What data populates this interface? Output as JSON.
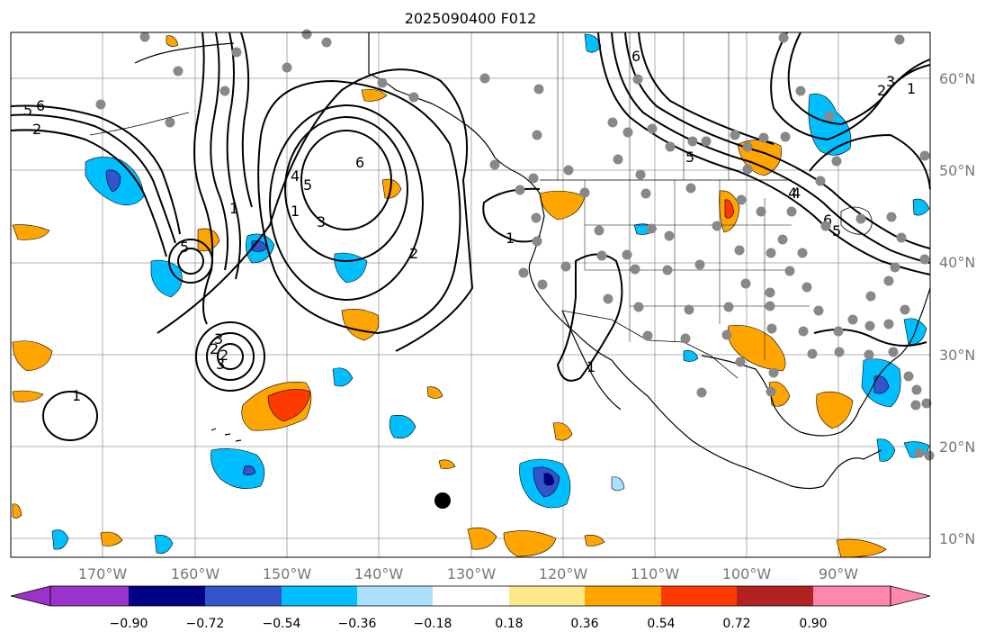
{
  "title": "2025090400 F012",
  "longitude_labels": [
    "170°W",
    "160°W",
    "150°W",
    "140°W",
    "130°W",
    "120°W",
    "110°W",
    "100°W",
    "90°W"
  ],
  "latitude_labels": [
    "60°N",
    "50°N",
    "40°N",
    "30°N",
    "20°N",
    "10°N"
  ],
  "colorbar": {
    "tick_labels": [
      "−0.90",
      "−0.72",
      "−0.54",
      "−0.36",
      "−0.18",
      "0.18",
      "0.36",
      "0.54",
      "0.72",
      "0.90"
    ],
    "colors": [
      "#9933cc",
      "#000088",
      "#3355cc",
      "#00bfff",
      "#aadfff",
      "#ffffff",
      "#ffe88a",
      "#ffa500",
      "#ff3a00",
      "#b22222",
      "#ff88aa"
    ]
  },
  "contour_labels": [
    "6",
    "5",
    "2",
    "1",
    "5",
    "3",
    "2",
    "6",
    "5",
    "4",
    "3",
    "2",
    "1",
    "1",
    "2",
    "3",
    "1",
    "1",
    "6",
    "5",
    "4",
    "3",
    "2",
    "1",
    "6",
    "5",
    "4"
  ],
  "colors": {
    "land_outline": "#000000",
    "grid": "#999999",
    "station_marker": "#888888",
    "contour": "#000000"
  }
}
